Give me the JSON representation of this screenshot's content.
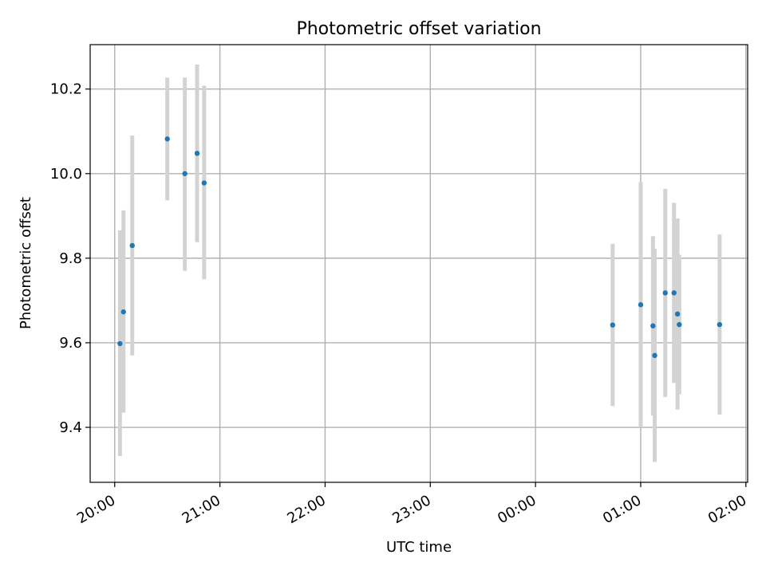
{
  "chart_data": {
    "type": "scatter",
    "title": "Photometric offset variation",
    "xlabel": "UTC time",
    "ylabel": "Photometric offset",
    "x_axis": {
      "type": "time",
      "start": "20:00",
      "end": "02:00",
      "min": "19:46",
      "max": "02:01",
      "ticks": [
        "20:00",
        "21:00",
        "22:00",
        "23:00",
        "00:00",
        "01:00",
        "02:00"
      ]
    },
    "y_axis": {
      "min": 9.27,
      "max": 10.305,
      "ticks": [
        9.4,
        9.6,
        9.8,
        10.0,
        10.2
      ],
      "tick_labels": [
        "9.4",
        "9.6",
        "9.8",
        "10.0",
        "10.2"
      ]
    },
    "grid": true,
    "colors": {
      "point": "#1f77b4",
      "errorbar": "#d3d3d3",
      "grid": "#b0b0b0"
    },
    "points": [
      {
        "time": "20:03",
        "y": 9.598,
        "low": 9.332,
        "high": 9.866
      },
      {
        "time": "20:05",
        "y": 9.673,
        "low": 9.435,
        "high": 9.913
      },
      {
        "time": "20:10",
        "y": 9.83,
        "low": 9.57,
        "high": 10.09
      },
      {
        "time": "20:30",
        "y": 10.082,
        "low": 9.937,
        "high": 10.227
      },
      {
        "time": "20:40",
        "y": 10.0,
        "low": 9.77,
        "high": 10.227
      },
      {
        "time": "20:47",
        "y": 10.048,
        "low": 9.838,
        "high": 10.258
      },
      {
        "time": "20:51",
        "y": 9.978,
        "low": 9.75,
        "high": 10.208
      },
      {
        "time": "00:44",
        "y": 9.642,
        "low": 9.45,
        "high": 9.834
      },
      {
        "time": "01:00",
        "y": 9.69,
        "low": 9.4,
        "high": 9.98
      },
      {
        "time": "01:07",
        "y": 9.64,
        "low": 9.428,
        "high": 9.852
      },
      {
        "time": "01:08",
        "y": 9.57,
        "low": 9.318,
        "high": 9.822
      },
      {
        "time": "01:14",
        "y": 9.718,
        "low": 9.472,
        "high": 9.964
      },
      {
        "time": "01:19",
        "y": 9.718,
        "low": 9.505,
        "high": 9.931
      },
      {
        "time": "01:21",
        "y": 9.668,
        "low": 9.442,
        "high": 9.894
      },
      {
        "time": "01:22",
        "y": 9.643,
        "low": 9.478,
        "high": 9.808
      },
      {
        "time": "01:45",
        "y": 9.643,
        "low": 9.43,
        "high": 9.856
      }
    ]
  }
}
